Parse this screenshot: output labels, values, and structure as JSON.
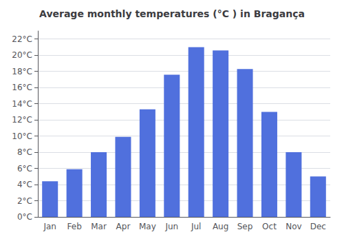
{
  "chart_data": {
    "type": "bar",
    "title": "Average monthly temperatures (°C ) in Bragança",
    "categories": [
      "Jan",
      "Feb",
      "Mar",
      "Apr",
      "May",
      "Jun",
      "Jul",
      "Aug",
      "Sep",
      "Oct",
      "Nov",
      "Dec"
    ],
    "values": [
      4.4,
      5.9,
      8.0,
      9.9,
      13.3,
      17.6,
      21.0,
      20.6,
      18.3,
      13.0,
      8.0,
      5.0
    ],
    "ylim": [
      0,
      23
    ],
    "yticks": [
      {
        "value": 0,
        "label": "0°C"
      },
      {
        "value": 2,
        "label": "2°C"
      },
      {
        "value": 4,
        "label": "4°C"
      },
      {
        "value": 6,
        "label": "6°C"
      },
      {
        "value": 8,
        "label": "8°C"
      },
      {
        "value": 10,
        "label": "10°C"
      },
      {
        "value": 12,
        "label": "12°C"
      },
      {
        "value": 14,
        "label": "14°C"
      },
      {
        "value": 16,
        "label": "16°C"
      },
      {
        "value": 18,
        "label": "18°C"
      },
      {
        "value": 20,
        "label": "20°C"
      },
      {
        "value": 22,
        "label": "22°C"
      }
    ],
    "grid": true
  }
}
